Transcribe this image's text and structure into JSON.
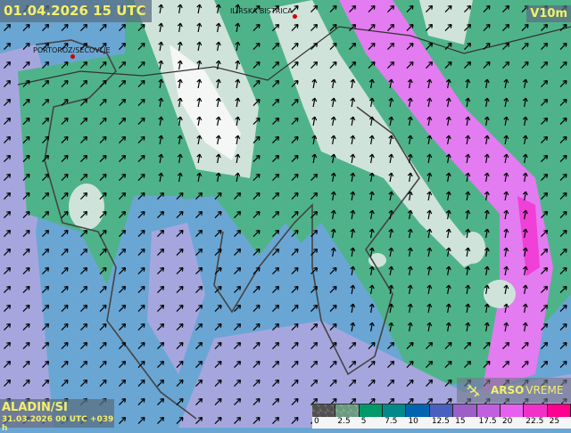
{
  "header": {
    "valid_time": "01.04.2026 15 UTC",
    "variable": "V10m"
  },
  "model": {
    "name": "ALADIN/SI",
    "run": "31.03.2026 00 UTC +039 h"
  },
  "brand": {
    "name_bold": "ARSO",
    "name_light": "VREME",
    "icon": "weather-satellite-icon"
  },
  "places": [
    {
      "name": "PORTOROZ/SECOVLJE"
    },
    {
      "name": "ILIRSKA BISTRICA"
    }
  ],
  "legend": {
    "ticks": [
      "0",
      "2.5",
      "5",
      "7.5",
      "10",
      "12.5",
      "15",
      "17.5",
      "20",
      "22.5",
      "25"
    ],
    "colors": [
      "#505050",
      "#6a9a80",
      "#009a6a",
      "#008a8a",
      "#0064b0",
      "#4a60c0",
      "#9a60c8",
      "#c060e0",
      "#e860f0",
      "#f030c8",
      "#ff0090"
    ]
  },
  "field_colors": {
    "blue": "#6aa6d4",
    "green": "#4fb38a",
    "pale": "#cfe3da",
    "white": "#f4f7f5",
    "lavender": "#a6a6de",
    "magenta": "#e27cf0"
  }
}
